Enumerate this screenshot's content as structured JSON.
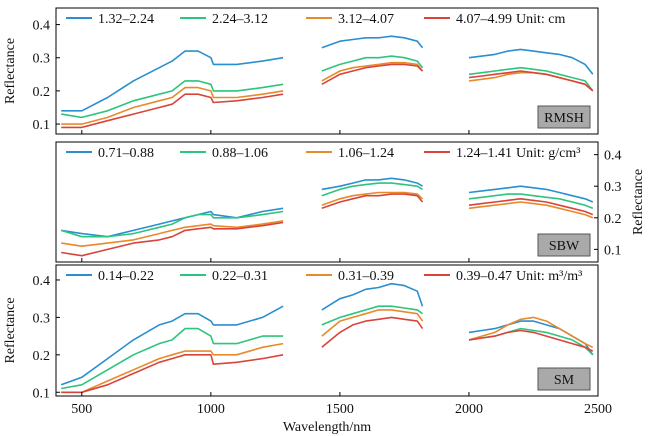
{
  "figure": {
    "xlabel": "Wavelength/nm",
    "x_ticks": [
      "500",
      "1000",
      "1500",
      "2000",
      "2500"
    ]
  },
  "chart_data": [
    {
      "type": "line",
      "panel_label": "RMSH",
      "ylabel": "Reflectance",
      "ylabel_side": "left",
      "unit_label": "Unit: cm",
      "xlim": [
        400,
        2500
      ],
      "ylim": [
        0.07,
        0.45
      ],
      "y_ticks": [
        0.1,
        0.2,
        0.3,
        0.4
      ],
      "y_tick_labels": [
        "0.1",
        "0.2",
        "0.3",
        "0.4"
      ],
      "legend_position": "top",
      "x": [
        420,
        500,
        600,
        700,
        800,
        850,
        900,
        950,
        1000,
        1010,
        1100,
        1200,
        1280,
        1430,
        1500,
        1550,
        1600,
        1650,
        1700,
        1750,
        1800,
        1820,
        2000,
        2050,
        2100,
        2150,
        2200,
        2250,
        2300,
        2350,
        2400,
        2450,
        2480
      ],
      "series": [
        {
          "name": "1.32–2.24",
          "color": "#2a8fd0",
          "values": [
            0.14,
            0.14,
            0.18,
            0.23,
            0.27,
            0.29,
            0.32,
            0.32,
            0.3,
            0.28,
            0.28,
            0.29,
            0.3,
            0.33,
            0.35,
            0.355,
            0.36,
            0.36,
            0.365,
            0.36,
            0.35,
            0.33,
            0.3,
            0.305,
            0.31,
            0.32,
            0.325,
            0.32,
            0.315,
            0.31,
            0.3,
            0.28,
            0.25
          ]
        },
        {
          "name": "2.24–3.12",
          "color": "#2dc47e",
          "values": [
            0.13,
            0.12,
            0.14,
            0.17,
            0.19,
            0.2,
            0.23,
            0.23,
            0.22,
            0.2,
            0.2,
            0.21,
            0.22,
            0.26,
            0.28,
            0.29,
            0.3,
            0.3,
            0.305,
            0.3,
            0.29,
            0.27,
            0.25,
            0.255,
            0.26,
            0.265,
            0.27,
            0.265,
            0.26,
            0.25,
            0.24,
            0.23,
            0.2
          ]
        },
        {
          "name": "3.12–4.07",
          "color": "#e8892a",
          "values": [
            0.1,
            0.1,
            0.12,
            0.15,
            0.17,
            0.18,
            0.21,
            0.21,
            0.2,
            0.18,
            0.18,
            0.19,
            0.2,
            0.23,
            0.26,
            0.27,
            0.275,
            0.28,
            0.285,
            0.285,
            0.28,
            0.26,
            0.23,
            0.235,
            0.24,
            0.25,
            0.255,
            0.255,
            0.25,
            0.24,
            0.23,
            0.22,
            0.2
          ]
        },
        {
          "name": "4.07–4.99",
          "color": "#d9443a",
          "values": [
            0.09,
            0.09,
            0.11,
            0.13,
            0.15,
            0.16,
            0.19,
            0.19,
            0.18,
            0.165,
            0.17,
            0.18,
            0.19,
            0.22,
            0.25,
            0.26,
            0.27,
            0.275,
            0.28,
            0.28,
            0.275,
            0.26,
            0.24,
            0.245,
            0.25,
            0.255,
            0.26,
            0.255,
            0.25,
            0.24,
            0.23,
            0.22,
            0.2
          ]
        }
      ]
    },
    {
      "type": "line",
      "panel_label": "SBW",
      "ylabel": "Reflectance",
      "ylabel_side": "right",
      "unit_label": "Unit: g/cm³",
      "xlim": [
        400,
        2500
      ],
      "ylim": [
        0.06,
        0.44
      ],
      "y_ticks": [
        0.1,
        0.2,
        0.3,
        0.4
      ],
      "y_tick_labels": [
        "0.1",
        "0.2",
        "0.3",
        "0.4"
      ],
      "legend_position": "top",
      "x": [
        420,
        500,
        600,
        700,
        800,
        850,
        900,
        950,
        1000,
        1010,
        1100,
        1200,
        1280,
        1430,
        1500,
        1550,
        1600,
        1650,
        1700,
        1750,
        1800,
        1820,
        2000,
        2050,
        2100,
        2150,
        2200,
        2250,
        2300,
        2350,
        2400,
        2450,
        2480
      ],
      "series": [
        {
          "name": "0.71–0.88",
          "color": "#2a8fd0",
          "values": [
            0.16,
            0.15,
            0.14,
            0.16,
            0.18,
            0.19,
            0.2,
            0.21,
            0.22,
            0.21,
            0.2,
            0.22,
            0.23,
            0.29,
            0.3,
            0.31,
            0.32,
            0.32,
            0.325,
            0.32,
            0.31,
            0.3,
            0.28,
            0.285,
            0.29,
            0.295,
            0.3,
            0.295,
            0.29,
            0.28,
            0.27,
            0.26,
            0.25
          ]
        },
        {
          "name": "0.88–1.06",
          "color": "#2dc47e",
          "values": [
            0.16,
            0.14,
            0.14,
            0.15,
            0.17,
            0.18,
            0.2,
            0.21,
            0.21,
            0.2,
            0.2,
            0.21,
            0.22,
            0.27,
            0.29,
            0.3,
            0.305,
            0.31,
            0.31,
            0.305,
            0.3,
            0.29,
            0.26,
            0.265,
            0.27,
            0.275,
            0.275,
            0.27,
            0.265,
            0.26,
            0.25,
            0.24,
            0.23
          ]
        },
        {
          "name": "1.06–1.24",
          "color": "#e8892a",
          "values": [
            0.12,
            0.11,
            0.12,
            0.13,
            0.15,
            0.16,
            0.17,
            0.175,
            0.18,
            0.175,
            0.17,
            0.18,
            0.19,
            0.24,
            0.26,
            0.27,
            0.275,
            0.28,
            0.28,
            0.28,
            0.275,
            0.26,
            0.23,
            0.235,
            0.24,
            0.245,
            0.25,
            0.245,
            0.24,
            0.23,
            0.22,
            0.21,
            0.2
          ]
        },
        {
          "name": "1.24–1.41",
          "color": "#d9443a",
          "values": [
            0.09,
            0.08,
            0.1,
            0.12,
            0.13,
            0.14,
            0.16,
            0.165,
            0.17,
            0.165,
            0.165,
            0.175,
            0.185,
            0.23,
            0.25,
            0.26,
            0.27,
            0.27,
            0.275,
            0.275,
            0.27,
            0.25,
            0.24,
            0.245,
            0.25,
            0.255,
            0.26,
            0.255,
            0.25,
            0.24,
            0.23,
            0.22,
            0.21
          ]
        }
      ]
    },
    {
      "type": "line",
      "panel_label": "SM",
      "ylabel": "Reflectance",
      "ylabel_side": "left",
      "unit_label": "Unit: m³/m³",
      "xlim": [
        400,
        2500
      ],
      "ylim": [
        0.09,
        0.44
      ],
      "y_ticks": [
        0.1,
        0.2,
        0.3,
        0.4
      ],
      "y_tick_labels": [
        "0.1",
        "0.2",
        "0.3",
        "0.4"
      ],
      "legend_position": "top",
      "x": [
        420,
        500,
        600,
        700,
        800,
        850,
        900,
        950,
        1000,
        1010,
        1100,
        1200,
        1280,
        1430,
        1500,
        1550,
        1600,
        1650,
        1700,
        1750,
        1800,
        1820,
        2000,
        2050,
        2100,
        2150,
        2200,
        2250,
        2300,
        2350,
        2400,
        2450,
        2480
      ],
      "series": [
        {
          "name": "0.14–0.22",
          "color": "#2a8fd0",
          "values": [
            0.12,
            0.14,
            0.19,
            0.24,
            0.28,
            0.29,
            0.31,
            0.31,
            0.29,
            0.28,
            0.28,
            0.3,
            0.33,
            0.32,
            0.35,
            0.36,
            0.375,
            0.38,
            0.39,
            0.385,
            0.37,
            0.33,
            0.26,
            0.265,
            0.27,
            0.28,
            0.29,
            0.29,
            0.28,
            0.27,
            0.25,
            0.23,
            0.2
          ]
        },
        {
          "name": "0.22–0.31",
          "color": "#2dc47e",
          "values": [
            0.11,
            0.12,
            0.16,
            0.2,
            0.23,
            0.24,
            0.27,
            0.27,
            0.25,
            0.23,
            0.23,
            0.25,
            0.25,
            0.28,
            0.3,
            0.31,
            0.32,
            0.33,
            0.33,
            0.325,
            0.32,
            0.31,
            0.24,
            0.245,
            0.25,
            0.26,
            0.27,
            0.265,
            0.26,
            0.25,
            0.24,
            0.22,
            0.2
          ]
        },
        {
          "name": "0.31–0.39",
          "color": "#e8892a",
          "values": [
            0.1,
            0.1,
            0.13,
            0.16,
            0.19,
            0.2,
            0.21,
            0.21,
            0.21,
            0.2,
            0.2,
            0.22,
            0.23,
            0.25,
            0.29,
            0.3,
            0.31,
            0.32,
            0.32,
            0.315,
            0.31,
            0.29,
            0.24,
            0.25,
            0.26,
            0.28,
            0.295,
            0.3,
            0.29,
            0.27,
            0.25,
            0.23,
            0.22
          ]
        },
        {
          "name": "0.39–0.47",
          "color": "#d9443a",
          "values": [
            0.1,
            0.1,
            0.12,
            0.15,
            0.18,
            0.19,
            0.2,
            0.2,
            0.2,
            0.175,
            0.18,
            0.19,
            0.2,
            0.22,
            0.26,
            0.28,
            0.29,
            0.295,
            0.3,
            0.295,
            0.29,
            0.27,
            0.24,
            0.245,
            0.25,
            0.26,
            0.265,
            0.26,
            0.25,
            0.24,
            0.23,
            0.22,
            0.21
          ]
        }
      ]
    }
  ]
}
